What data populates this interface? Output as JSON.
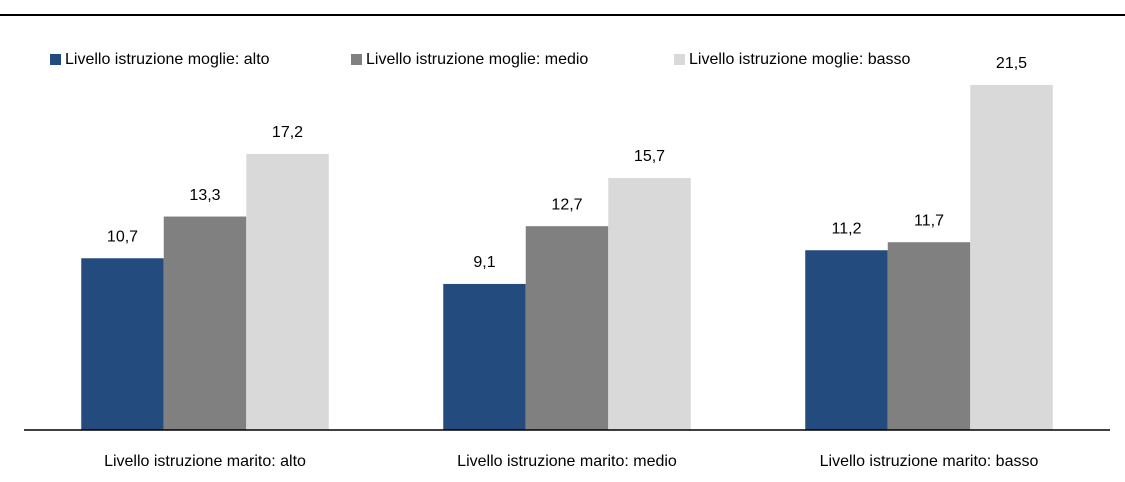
{
  "chart_data": {
    "type": "bar",
    "categories": [
      "Livello istruzione marito: alto",
      "Livello istruzione marito: medio",
      "Livello istruzione marito: basso"
    ],
    "series": [
      {
        "name": "Livello istruzione moglie: alto",
        "color": "#234b7e",
        "values": [
          10.7,
          9.1,
          11.2
        ],
        "value_labels": [
          "10,7",
          "9,1",
          "11,2"
        ]
      },
      {
        "name": "Livello istruzione moglie: medio",
        "color": "#808080",
        "values": [
          13.3,
          12.7,
          11.7
        ],
        "value_labels": [
          "13,3",
          "12,7",
          "11,7"
        ]
      },
      {
        "name": "Livello istruzione moglie: basso",
        "color": "#d9d9d9",
        "values": [
          17.2,
          15.7,
          21.5
        ],
        "value_labels": [
          "17,2",
          "15,7",
          "21,5"
        ]
      }
    ],
    "legend": "top"
  }
}
